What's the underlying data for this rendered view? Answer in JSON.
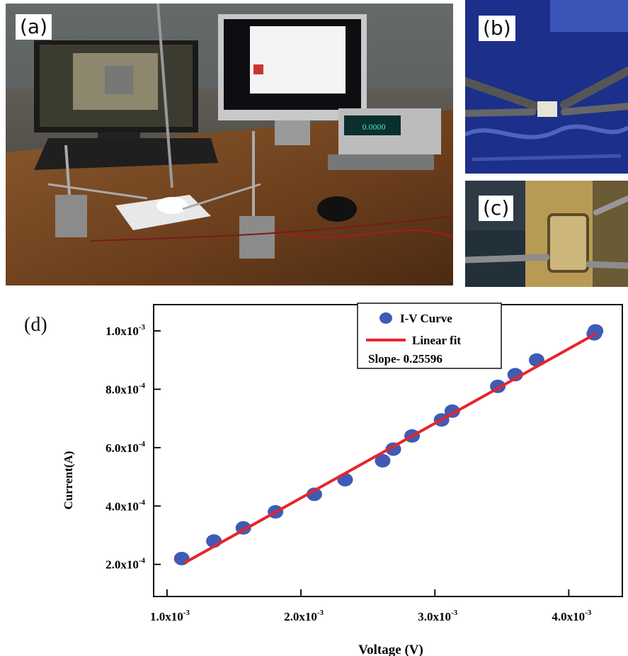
{
  "panels": {
    "a": "(a)",
    "b": "(b)",
    "c": "(c)",
    "d": "(d)"
  },
  "photos": {
    "a_icon": "lab-bench-photo",
    "b_icon": "probe-on-chip-photo",
    "c_icon": "device-closeup-photo",
    "meter_display": "0.0000"
  },
  "colors": {
    "points": "#3f5bb5",
    "fit": "#e8242b",
    "axis": "#111111"
  },
  "chart_data": {
    "type": "scatter",
    "xlabel": "Voltage (V)",
    "ylabel": "Current(A)",
    "xlim": [
      0.0009,
      0.0044
    ],
    "ylim": [
      9e-05,
      0.00109
    ],
    "x_ticks": [
      {
        "value": 0.001,
        "label": "1.0x10",
        "exp": "-3"
      },
      {
        "value": 0.002,
        "label": "2.0x10",
        "exp": "-3"
      },
      {
        "value": 0.003,
        "label": "3.0x10",
        "exp": "-3"
      },
      {
        "value": 0.004,
        "label": "4.0x10",
        "exp": "-3"
      }
    ],
    "y_ticks": [
      {
        "value": 0.0002,
        "label": "2.0x10",
        "exp": "-4"
      },
      {
        "value": 0.0004,
        "label": "4.0x10",
        "exp": "-4"
      },
      {
        "value": 0.0006,
        "label": "6.0x10",
        "exp": "-4"
      },
      {
        "value": 0.0008,
        "label": "8.0x10",
        "exp": "-4"
      },
      {
        "value": 0.001,
        "label": "1.0x10",
        "exp": "-3"
      }
    ],
    "series": [
      {
        "name": "I-V Curve",
        "type": "scatter",
        "x": [
          0.00111,
          0.00135,
          0.00157,
          0.00181,
          0.0021,
          0.00233,
          0.00261,
          0.00269,
          0.00283,
          0.00305,
          0.00313,
          0.00347,
          0.0036,
          0.00376,
          0.00419,
          0.0042
        ],
        "y": [
          0.00022,
          0.00028,
          0.000325,
          0.00038,
          0.00044,
          0.00049,
          0.000555,
          0.000595,
          0.00064,
          0.000695,
          0.000725,
          0.00081,
          0.00085,
          0.0009,
          0.00099,
          0.001
        ]
      },
      {
        "name": "Linear fit",
        "type": "line",
        "x": [
          0.00113,
          0.0042
        ],
        "y": [
          0.000205,
          0.00099
        ]
      }
    ],
    "annotation": "Slope- 0.25596",
    "legend_position": "top-right",
    "grid": false
  }
}
